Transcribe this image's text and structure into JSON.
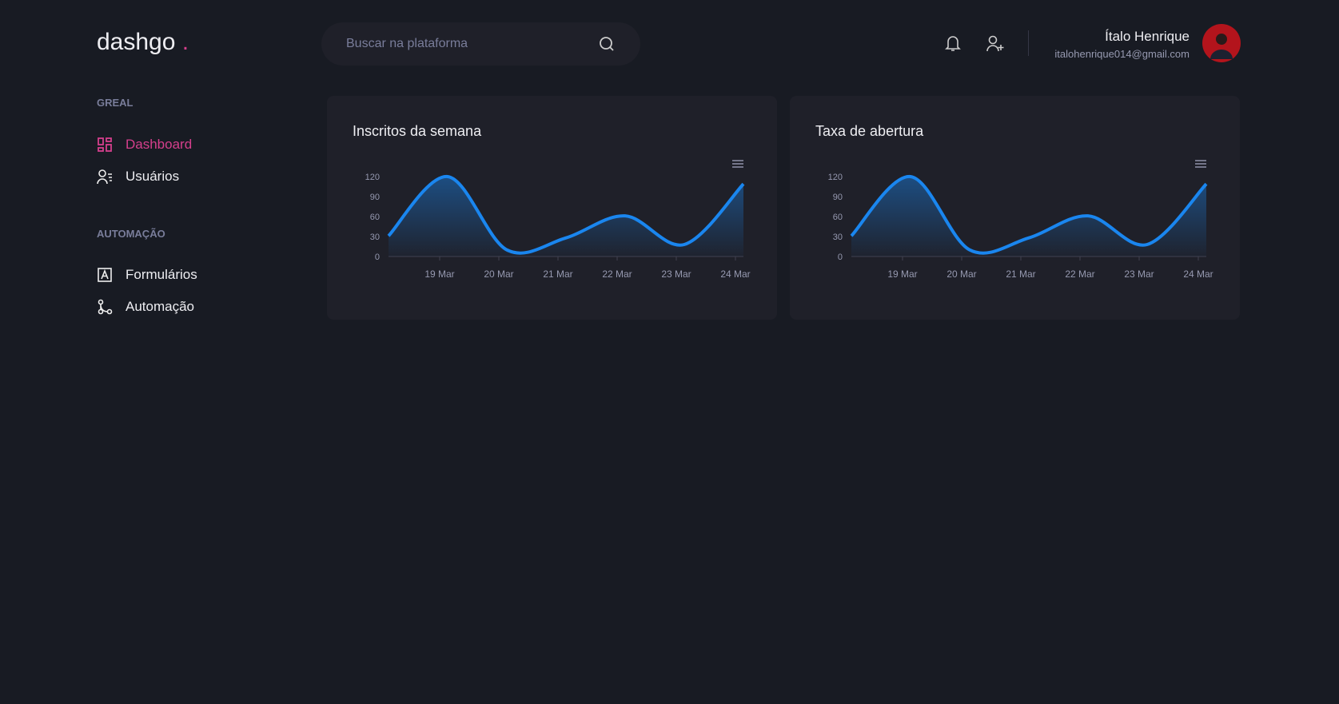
{
  "header": {
    "logo": "dashgo",
    "logo_dot": ".",
    "search_placeholder": "Buscar na plataforma",
    "user_name": "Ítalo Henrique",
    "user_email": "italohenrique014@gmail.com"
  },
  "sidebar": [
    {
      "title": "GREAL",
      "items": [
        "Dashboard",
        "Usuários"
      ]
    },
    {
      "title": "AUTOMAÇÃO",
      "items": [
        "Formulários",
        "Automação"
      ]
    }
  ],
  "charts": [
    {
      "type": "area",
      "title": "Inscritos da semana",
      "categories": [
        null,
        "19 Mar",
        "20 Mar",
        "21 Mar",
        "22 Mar",
        "23 Mar",
        "24 Mar"
      ],
      "values": [
        31,
        120,
        10,
        28,
        61,
        18,
        109
      ],
      "color": "#1a86ef",
      "ylim": [
        0,
        120
      ],
      "yticks": [
        0,
        30,
        60,
        90,
        120
      ]
    },
    {
      "type": "area",
      "title": "Taxa de abertura",
      "categories": [
        null,
        "19 Mar",
        "20 Mar",
        "21 Mar",
        "22 Mar",
        "23 Mar",
        "24 Mar"
      ],
      "values": [
        31,
        120,
        10,
        28,
        61,
        18,
        109
      ],
      "color": "#1a86ef",
      "ylim": [
        0,
        120
      ],
      "yticks": [
        0,
        30,
        60,
        90,
        120
      ]
    }
  ]
}
